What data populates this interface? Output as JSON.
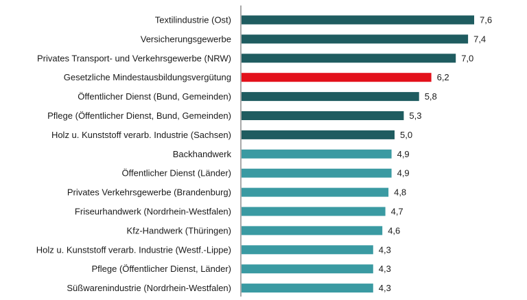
{
  "chart_data": {
    "type": "bar",
    "orientation": "horizontal",
    "categories": [
      "Textilindustrie (Ost)",
      "Versicherungsgewerbe",
      "Privates Transport- und Verkehrsgewerbe (NRW)",
      "Gesetzliche Mindestausbildungsvergütung",
      "Öffentlicher Dienst (Bund, Gemeinden)",
      "Pflege (Öffentlicher Dienst, Bund, Gemeinden)",
      "Holz u. Kunststoff verarb. Industrie (Sachsen)",
      "Backhandwerk",
      "Öffentlicher Dienst (Länder)",
      "Privates Verkehrsgewerbe  (Brandenburg)",
      "Friseurhandwerk (Nordrhein-Westfalen)",
      "Kfz-Handwerk (Thüringen)",
      "Holz u. Kunststoff verarb. Industrie (Westf.-Lippe)",
      "Pflege (Öffentlicher Dienst, Länder)",
      "Süßwarenindustrie (Nordrhein-Westfalen)"
    ],
    "values": [
      7.6,
      7.4,
      7.0,
      6.2,
      5.8,
      5.3,
      5.0,
      4.9,
      4.9,
      4.8,
      4.7,
      4.6,
      4.3,
      4.3,
      4.3
    ],
    "value_labels": [
      "7,6",
      "7,4",
      "7,0",
      "6,2",
      "5,8",
      "5,3",
      "5,0",
      "4,9",
      "4,9",
      "4,8",
      "4,7",
      "4,6",
      "4,3",
      "4,3",
      "4,3"
    ],
    "groups": [
      "dark",
      "dark",
      "dark",
      "highlight",
      "dark",
      "dark",
      "dark",
      "light",
      "light",
      "light",
      "light",
      "light",
      "light",
      "light",
      "light"
    ],
    "colors": {
      "dark": "#1f5c60",
      "highlight": "#e3111b",
      "light": "#3a9aa2",
      "axis": "#8c8c8c"
    },
    "xlim": [
      0,
      7.6
    ],
    "grid": false,
    "legend": "none",
    "title": "",
    "xlabel": "",
    "ylabel": ""
  }
}
